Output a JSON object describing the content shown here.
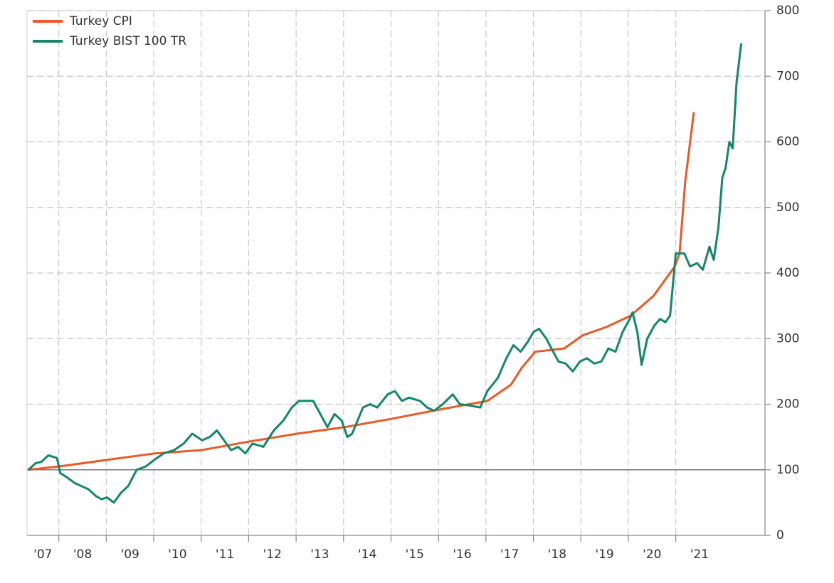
{
  "chart_data": {
    "type": "line",
    "series": [
      {
        "name": "Turkey CPI",
        "color": "#ea5a28",
        "x": [
          2007.36,
          2008.0,
          2009.01,
          2010.03,
          2011.01,
          2012.01,
          2013.02,
          2014.02,
          2015.03,
          2016.03,
          2017.03,
          2017.53,
          2017.75,
          2018.04,
          2018.65,
          2019.04,
          2019.55,
          2020.05,
          2020.53,
          2020.83,
          2020.98,
          2021.08,
          2021.2,
          2021.38
        ],
        "values": [
          100,
          105,
          115,
          125,
          130,
          143,
          155,
          165,
          178,
          192,
          205,
          230,
          255,
          280,
          285,
          305,
          318,
          335,
          365,
          395,
          410,
          430,
          540,
          645
        ]
      },
      {
        "name": "Turkey BIST 100 TR",
        "color": "#14876a",
        "x": [
          2007.36,
          2007.51,
          2007.63,
          2007.78,
          2007.96,
          2008.03,
          2008.18,
          2008.33,
          2008.48,
          2008.63,
          2008.78,
          2008.9,
          2009.01,
          2009.16,
          2009.31,
          2009.46,
          2009.64,
          2009.83,
          2010.01,
          2010.21,
          2010.43,
          2010.63,
          2010.81,
          2011.02,
          2011.18,
          2011.33,
          2011.48,
          2011.63,
          2011.78,
          2011.93,
          2012.08,
          2012.31,
          2012.53,
          2012.73,
          2012.91,
          2013.06,
          2013.36,
          2013.51,
          2013.66,
          2013.81,
          2013.96,
          2014.08,
          2014.18,
          2014.41,
          2014.56,
          2014.71,
          2014.93,
          2015.08,
          2015.23,
          2015.38,
          2015.61,
          2015.76,
          2015.91,
          2016.09,
          2016.3,
          2016.45,
          2016.66,
          2016.88,
          2017.03,
          2017.25,
          2017.43,
          2017.58,
          2017.73,
          2017.88,
          2018.0,
          2018.12,
          2018.27,
          2018.38,
          2018.53,
          2018.68,
          2018.83,
          2018.98,
          2019.13,
          2019.28,
          2019.43,
          2019.58,
          2019.73,
          2019.88,
          2020.03,
          2020.09,
          2020.19,
          2020.28,
          2020.4,
          2020.55,
          2020.67,
          2020.78,
          2020.88,
          2021.0,
          2021.18,
          2021.3,
          2021.45,
          2021.57,
          2021.71,
          2021.8,
          2021.9,
          2021.98,
          2022.05,
          2022.13,
          2022.2,
          2022.28,
          2022.38
        ],
        "values": [
          100,
          110,
          112,
          122,
          118,
          95,
          88,
          80,
          75,
          70,
          60,
          55,
          58,
          50,
          65,
          75,
          100,
          105,
          115,
          125,
          130,
          140,
          155,
          145,
          150,
          160,
          145,
          130,
          135,
          125,
          140,
          135,
          160,
          175,
          195,
          205,
          205,
          185,
          165,
          185,
          175,
          150,
          155,
          195,
          200,
          195,
          215,
          220,
          205,
          210,
          205,
          195,
          190,
          200,
          215,
          200,
          198,
          195,
          220,
          240,
          270,
          290,
          280,
          295,
          310,
          315,
          300,
          285,
          265,
          262,
          250,
          265,
          270,
          262,
          265,
          285,
          280,
          310,
          330,
          340,
          310,
          260,
          300,
          320,
          330,
          325,
          335,
          430,
          430,
          410,
          415,
          405,
          440,
          420,
          470,
          545,
          560,
          600,
          590,
          690,
          750
        ]
      }
    ],
    "xlim": [
      2007.33,
      2022.88
    ],
    "xticks": [
      {
        "value": 2007,
        "label": "'07"
      },
      {
        "value": 2008,
        "label": "'08"
      },
      {
        "value": 2009,
        "label": "'09"
      },
      {
        "value": 2010,
        "label": "'10"
      },
      {
        "value": 2011,
        "label": "'11"
      },
      {
        "value": 2012,
        "label": "'12"
      },
      {
        "value": 2013,
        "label": "'13"
      },
      {
        "value": 2014,
        "label": "'14"
      },
      {
        "value": 2015,
        "label": "'15"
      },
      {
        "value": 2016,
        "label": "'16"
      },
      {
        "value": 2017,
        "label": "'17"
      },
      {
        "value": 2018,
        "label": "'18"
      },
      {
        "value": 2019,
        "label": "'19"
      },
      {
        "value": 2020,
        "label": "'20"
      },
      {
        "value": 2021,
        "label": "'21"
      }
    ],
    "ylim": [
      0,
      800
    ],
    "yticks": [
      0,
      100,
      200,
      300,
      400,
      500,
      600,
      700,
      800
    ],
    "baseline": 100,
    "grid": true,
    "legend": "top-left"
  }
}
